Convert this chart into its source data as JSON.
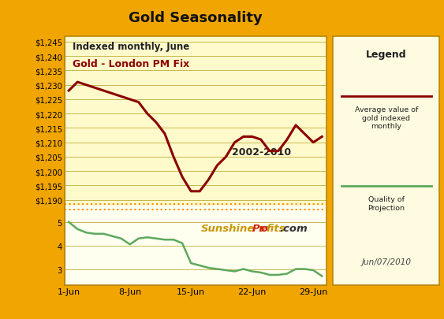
{
  "title": "Gold Seasonality",
  "bg_outer": "#F0A500",
  "bg_inner_top": "#FFFACC",
  "bg_inner_bot": "#FFFFF0",
  "subtitle1": "Indexed monthly, June",
  "subtitle2": "Gold - London PM Fix",
  "annotation": "2002-2010",
  "date_label": "Jun/07/2010",
  "legend_title": "Legend",
  "legend_line1": "Average value of\ngold indexed\nmonthly",
  "legend_line2": "Quality of\nProjection",
  "x_labels": [
    "1-Jun",
    "8-Jun",
    "15-Jun",
    "22-Jun",
    "29-Jun"
  ],
  "x_ticks": [
    0,
    7,
    14,
    21,
    28
  ],
  "gold_x": [
    0,
    1,
    2,
    3,
    4,
    5,
    6,
    7,
    8,
    9,
    10,
    11,
    12,
    13,
    14,
    15,
    16,
    17,
    18,
    19,
    20,
    21,
    22,
    23,
    24,
    25,
    26,
    27,
    28,
    29
  ],
  "gold_y": [
    1228,
    1231,
    1230,
    1229,
    1228,
    1227,
    1226,
    1225,
    1224,
    1220,
    1217,
    1213,
    1205,
    1198,
    1193,
    1193,
    1197,
    1202,
    1205,
    1210,
    1212,
    1212,
    1211,
    1207,
    1207,
    1211,
    1216,
    1213,
    1210,
    1212
  ],
  "quality_x": [
    0,
    1,
    2,
    3,
    4,
    5,
    6,
    7,
    8,
    9,
    10,
    11,
    12,
    13,
    14,
    15,
    16,
    17,
    18,
    19,
    20,
    21,
    22,
    23,
    24,
    25,
    26,
    27,
    28,
    29
  ],
  "quality_y": [
    5.0,
    4.7,
    4.55,
    4.5,
    4.5,
    4.4,
    4.3,
    4.05,
    4.3,
    4.35,
    4.3,
    4.25,
    4.25,
    4.1,
    3.25,
    3.15,
    3.05,
    3.0,
    2.95,
    2.9,
    3.0,
    2.9,
    2.85,
    2.75,
    2.75,
    2.8,
    3.0,
    3.0,
    2.95,
    2.7
  ],
  "gold_color": "#8B0000",
  "quality_color": "#5DA85D",
  "dotted_color": "#FF8C00",
  "grid_color": "#C8B84A",
  "yticks_main": [
    1190,
    1195,
    1200,
    1205,
    1210,
    1215,
    1220,
    1225,
    1230,
    1235,
    1240,
    1245
  ],
  "ylim_main": [
    1188,
    1247
  ],
  "yticks_qual": [
    3,
    4,
    5
  ],
  "ylim_qual": [
    2.3,
    5.7
  ],
  "xlim": [
    -0.5,
    29.5
  ],
  "legend_bg": "#FFFBE0",
  "border_color": "#B8860B"
}
